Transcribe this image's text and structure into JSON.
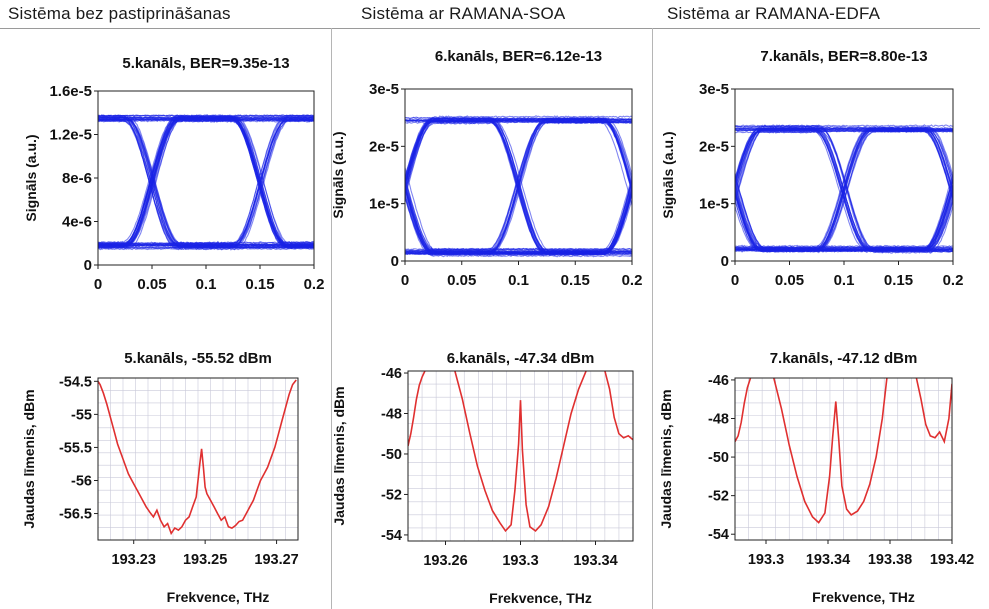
{
  "columns": [
    {
      "title": "Sistēma bez pastiprināšanas"
    },
    {
      "title": "Sistēma ar RAMANA-SOA"
    },
    {
      "title": "Sistēma ar RAMANA-EDFA"
    }
  ],
  "chart_data": [
    {
      "type": "line",
      "kind": "eye-diagram",
      "title": "5.kanāls, BER=9.35e-13",
      "xlabel": "",
      "ylabel": "Signāls (a.u.)",
      "xlim": [
        0,
        0.2
      ],
      "ylim": [
        0,
        1.6e-05
      ],
      "xticks": [
        0,
        0.05,
        0.1,
        0.15,
        0.2
      ],
      "xtick_labels": [
        "0",
        "0.05",
        "0.1",
        "0.15",
        "0.2"
      ],
      "yticks": [
        0,
        4e-06,
        8e-06,
        1.2e-05,
        1.6e-05
      ],
      "ytick_labels": [
        "0",
        "4e-6",
        "8e-6",
        "1.2e-5",
        "1.6e-5"
      ],
      "grid": false,
      "series_color": "#1a22e6",
      "eye": {
        "high_level": 1.35e-05,
        "low_level": 1.8e-06,
        "crossings": [
          0.025,
          0.125
        ],
        "period": 0.1
      }
    },
    {
      "type": "line",
      "kind": "eye-diagram",
      "title": "6.kanāls, BER=6.12e-13",
      "xlabel": "",
      "ylabel": "Signāls (a.u.)",
      "xlim": [
        0,
        0.2
      ],
      "ylim": [
        0,
        3e-05
      ],
      "xticks": [
        0,
        0.05,
        0.1,
        0.15,
        0.2
      ],
      "xtick_labels": [
        "0",
        "0.05",
        "0.1",
        "0.15",
        "0.2"
      ],
      "yticks": [
        0,
        1e-05,
        2e-05,
        3e-05
      ],
      "ytick_labels": [
        "0",
        "1e-5",
        "2e-5",
        "3e-5"
      ],
      "grid": false,
      "series_color": "#1a22e6",
      "eye": {
        "high_level": 2.45e-05,
        "low_level": 1.5e-06,
        "crossings": [
          0.075,
          0.175
        ],
        "period": 0.1
      }
    },
    {
      "type": "line",
      "kind": "eye-diagram",
      "title": "7.kanāls, BER=8.80e-13",
      "xlabel": "",
      "ylabel": "Signāls (a.u.)",
      "xlim": [
        0,
        0.2
      ],
      "ylim": [
        0,
        3e-05
      ],
      "xticks": [
        0,
        0.05,
        0.1,
        0.15,
        0.2
      ],
      "xtick_labels": [
        "0",
        "0.05",
        "0.1",
        "0.15",
        "0.2"
      ],
      "yticks": [
        0,
        1e-05,
        2e-05,
        3e-05
      ],
      "ytick_labels": [
        "0",
        "1e-5",
        "2e-5",
        "3e-5"
      ],
      "grid": false,
      "series_color": "#1a22e6",
      "eye": {
        "high_level": 2.3e-05,
        "low_level": 2e-06,
        "crossings": [
          0.075,
          0.175
        ],
        "period": 0.1
      }
    },
    {
      "type": "line",
      "title": "5.kanāls, -55.52 dBm",
      "xlabel": "Frekvence, THz",
      "ylabel": "Jaudas līmenis, dBm",
      "xlim": [
        193.22,
        193.276
      ],
      "ylim": [
        -56.9,
        -54.45
      ],
      "xticks": [
        193.23,
        193.25,
        193.27
      ],
      "xtick_labels": [
        "193.23",
        "193.25",
        "193.27"
      ],
      "yticks": [
        -54.5,
        -55,
        -55.5,
        -56,
        -56.5
      ],
      "ytick_labels": [
        "-54.5",
        "-55",
        "-55.5",
        "-56",
        "-56.5"
      ],
      "grid": true,
      "series_color": "#e03030",
      "series": [
        {
          "x": [
            193.22,
            193.2206,
            193.2215,
            193.2225,
            193.2235,
            193.2245,
            193.2255,
            193.2265,
            193.2275,
            193.2285,
            193.2295,
            193.2305,
            193.2315,
            193.2325,
            193.2335,
            193.2345,
            193.2355,
            193.2365,
            193.2375,
            193.2385,
            193.2395,
            193.2405,
            193.2415,
            193.2425,
            193.2435,
            193.2445,
            193.2455,
            193.2465,
            193.2475,
            193.248,
            193.2485,
            193.249,
            193.2495,
            193.25,
            193.2505,
            193.2515,
            193.2525,
            193.2535,
            193.2545,
            193.2555,
            193.2565,
            193.2575,
            193.2585,
            193.2595,
            193.2605,
            193.2615,
            193.2625,
            193.2635,
            193.2645,
            193.2655,
            193.2665,
            193.2675,
            193.2685,
            193.2695,
            193.2705,
            193.2715,
            193.2725,
            193.2735,
            193.2745,
            193.2755
          ],
          "y": [
            -54.5,
            -54.55,
            -54.68,
            -54.85,
            -55.05,
            -55.25,
            -55.45,
            -55.6,
            -55.75,
            -55.9,
            -56.0,
            -56.1,
            -56.2,
            -56.3,
            -56.4,
            -56.48,
            -56.55,
            -56.45,
            -56.6,
            -56.7,
            -56.65,
            -56.8,
            -56.72,
            -56.75,
            -56.7,
            -56.6,
            -56.55,
            -56.4,
            -56.25,
            -56.0,
            -55.75,
            -55.52,
            -55.8,
            -56.1,
            -56.2,
            -56.3,
            -56.4,
            -56.5,
            -56.6,
            -56.55,
            -56.7,
            -56.72,
            -56.68,
            -56.62,
            -56.6,
            -56.5,
            -56.4,
            -56.3,
            -56.15,
            -56.0,
            -55.9,
            -55.8,
            -55.65,
            -55.5,
            -55.3,
            -55.1,
            -54.9,
            -54.7,
            -54.55,
            -54.48
          ]
        }
      ]
    },
    {
      "type": "line",
      "title": "6.kanāls, -47.34 dBm",
      "xlabel": "Frekvence, THz",
      "ylabel": "Jaudas līmenis, dBm",
      "xlim": [
        193.24,
        193.36
      ],
      "ylim": [
        -54.3,
        -45.9
      ],
      "xticks": [
        193.26,
        193.3,
        193.34
      ],
      "xtick_labels": [
        "193.26",
        "193.3",
        "193.34"
      ],
      "yticks": [
        -46,
        -48,
        -50,
        -52,
        -54
      ],
      "ytick_labels": [
        "-46",
        "-48",
        "-50",
        "-52",
        "-54"
      ],
      "grid": true,
      "series_color": "#e03030",
      "series": [
        {
          "x": [
            193.24,
            193.2415,
            193.243,
            193.2445,
            193.246,
            193.2475,
            193.249
          ],
          "y": [
            -49.6,
            -49.0,
            -48.2,
            -47.3,
            -46.6,
            -46.2,
            -45.9
          ]
        },
        {
          "x": [
            193.265,
            193.269,
            193.273,
            193.277,
            193.281,
            193.285,
            193.289,
            193.292,
            193.295,
            193.297,
            193.299,
            193.3,
            193.301,
            193.303,
            193.305,
            193.308,
            193.311,
            193.315,
            193.319,
            193.323,
            193.327,
            193.331,
            193.335
          ],
          "y": [
            -45.9,
            -47.3,
            -49.0,
            -50.6,
            -51.8,
            -52.8,
            -53.4,
            -53.8,
            -53.5,
            -51.8,
            -49.5,
            -47.34,
            -49.8,
            -52.5,
            -53.6,
            -53.8,
            -53.5,
            -52.6,
            -51.2,
            -49.6,
            -48.0,
            -46.8,
            -45.9
          ]
        },
        {
          "x": [
            193.345,
            193.3475,
            193.35,
            193.3525,
            193.355,
            193.3575,
            193.36
          ],
          "y": [
            -45.9,
            -46.8,
            -48.2,
            -49.0,
            -49.2,
            -49.1,
            -49.3
          ]
        }
      ]
    },
    {
      "type": "line",
      "title": "7.kanāls, -47.12 dBm",
      "xlabel": "Frekvence, THz",
      "ylabel": "Jaudas līmenis, dBm",
      "xlim": [
        193.28,
        193.42
      ],
      "ylim": [
        -54.3,
        -45.9
      ],
      "xticks": [
        193.3,
        193.34,
        193.38,
        193.42
      ],
      "xtick_labels": [
        "193.3",
        "193.34",
        "193.38",
        "193.42"
      ],
      "yticks": [
        -46,
        -48,
        -50,
        -52,
        -54
      ],
      "ytick_labels": [
        "-46",
        "-48",
        "-50",
        "-52",
        "-54"
      ],
      "grid": true,
      "series_color": "#e03030",
      "series": [
        {
          "x": [
            193.28,
            193.282,
            193.284,
            193.286,
            193.288,
            193.29
          ],
          "y": [
            -49.2,
            -48.9,
            -48.2,
            -47.2,
            -46.4,
            -45.9
          ]
        },
        {
          "x": [
            193.305,
            193.31,
            193.315,
            193.32,
            193.325,
            193.33,
            193.334,
            193.338,
            193.341,
            193.343,
            193.345,
            193.347,
            193.349,
            193.352,
            193.355,
            193.359,
            193.363,
            193.367,
            193.371,
            193.375,
            193.378
          ],
          "y": [
            -45.9,
            -47.5,
            -49.4,
            -51.0,
            -52.3,
            -53.1,
            -53.4,
            -52.9,
            -51.0,
            -49.0,
            -47.12,
            -49.2,
            -51.5,
            -52.7,
            -53.0,
            -52.8,
            -52.3,
            -51.4,
            -50.0,
            -48.0,
            -45.9
          ]
        },
        {
          "x": [
            193.397,
            193.4,
            193.403,
            193.406,
            193.409,
            193.412,
            193.415,
            193.418,
            193.42
          ],
          "y": [
            -45.9,
            -47.0,
            -48.3,
            -48.9,
            -49.0,
            -48.7,
            -49.2,
            -48.0,
            -46.2
          ]
        }
      ]
    }
  ]
}
